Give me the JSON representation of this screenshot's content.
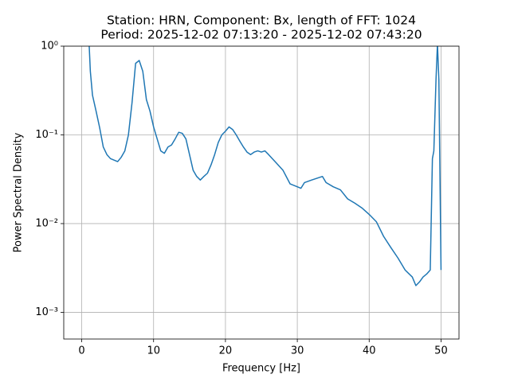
{
  "chart_data": {
    "type": "line",
    "title": "Station: HRN, Component: Bx, length of FFT: 1024",
    "subtitle": "Period: 2025-12-02 07:13:20 - 2025-12-02 07:43:20",
    "x_label": "Frequency [Hz]",
    "y_label": "Power Spectral Density",
    "log_y": true,
    "grid": true,
    "xlim": [
      -2.5,
      52.5
    ],
    "xticks": [
      0,
      10,
      20,
      30,
      40,
      50
    ],
    "ylim": [
      0.0005,
      1
    ],
    "yticks": [
      {
        "value": 1,
        "label": "10⁰"
      },
      {
        "value": 0.1,
        "label": "10⁻¹"
      },
      {
        "value": 0.01,
        "label": "10⁻²"
      },
      {
        "value": 0.001,
        "label": "10⁻³"
      }
    ],
    "x": [
      1.0,
      1.2,
      1.5,
      2.0,
      2.5,
      3.0,
      3.5,
      4.0,
      4.5,
      5.0,
      5.5,
      6.0,
      6.5,
      7.0,
      7.5,
      8.0,
      8.5,
      9.0,
      9.5,
      10.0,
      10.5,
      11.0,
      11.5,
      12.0,
      12.5,
      13.0,
      13.5,
      14.0,
      14.5,
      15.0,
      15.5,
      16.0,
      16.5,
      17.0,
      17.5,
      18.0,
      18.5,
      19.0,
      19.5,
      20.0,
      20.5,
      21.0,
      21.5,
      22.0,
      22.5,
      23.0,
      23.5,
      24.0,
      24.5,
      25.0,
      25.5,
      26.0,
      27.0,
      28.0,
      29.0,
      30.0,
      30.5,
      31.0,
      32.0,
      33.0,
      33.5,
      34.0,
      35.0,
      36.0,
      37.0,
      38.0,
      39.0,
      40.0,
      41.0,
      42.0,
      43.0,
      44.0,
      45.0,
      46.0,
      46.5,
      47.0,
      47.5,
      48.0,
      48.5,
      48.8,
      49.0,
      49.3,
      49.5,
      49.7,
      50.0
    ],
    "series": [
      {
        "name": "PSD",
        "color": "#1f77b4",
        "values": [
          1.2,
          0.52,
          0.28,
          0.185,
          0.12,
          0.073,
          0.06,
          0.054,
          0.052,
          0.05,
          0.056,
          0.066,
          0.1,
          0.23,
          0.64,
          0.69,
          0.52,
          0.25,
          0.185,
          0.123,
          0.09,
          0.066,
          0.062,
          0.073,
          0.077,
          0.09,
          0.107,
          0.104,
          0.09,
          0.06,
          0.04,
          0.034,
          0.031,
          0.034,
          0.037,
          0.046,
          0.06,
          0.082,
          0.1,
          0.11,
          0.123,
          0.115,
          0.1,
          0.085,
          0.073,
          0.064,
          0.06,
          0.064,
          0.066,
          0.064,
          0.066,
          0.06,
          0.049,
          0.04,
          0.028,
          0.026,
          0.025,
          0.029,
          0.031,
          0.033,
          0.034,
          0.029,
          0.026,
          0.024,
          0.019,
          0.017,
          0.015,
          0.0127,
          0.0105,
          0.0072,
          0.0054,
          0.0041,
          0.003,
          0.0025,
          0.002,
          0.0022,
          0.0025,
          0.0027,
          0.003,
          0.054,
          0.066,
          0.42,
          1.06,
          0.42,
          0.003
        ]
      }
    ]
  }
}
